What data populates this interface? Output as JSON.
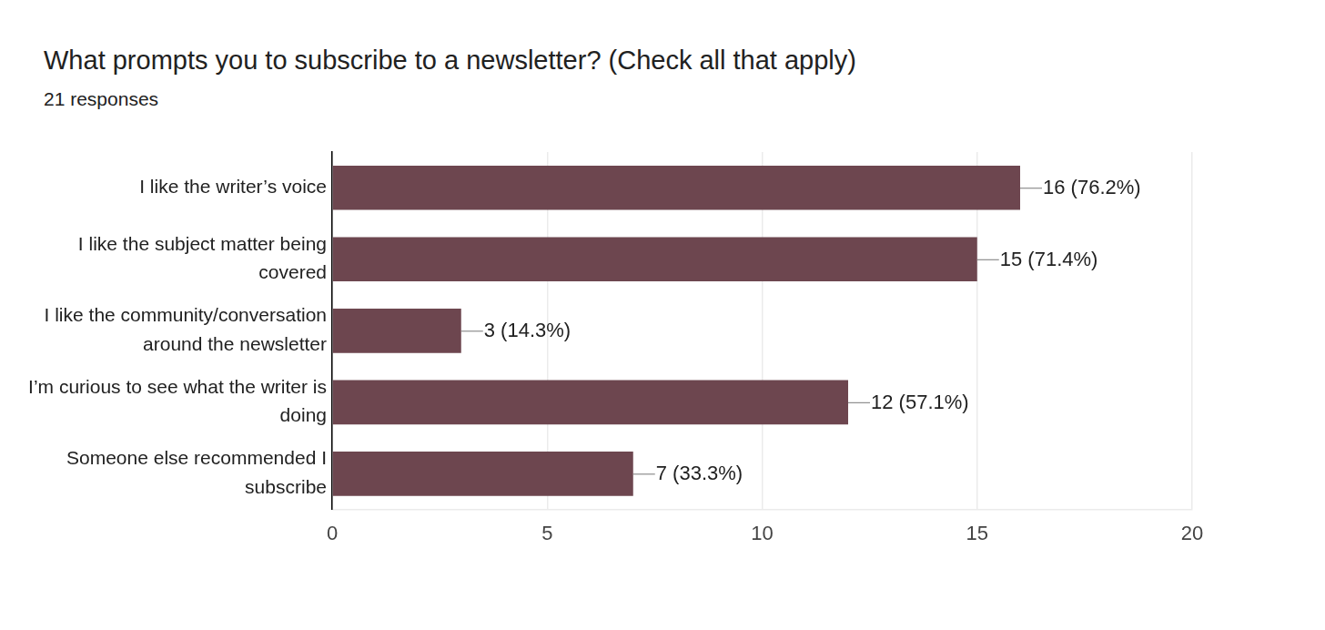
{
  "chart_data": {
    "type": "bar",
    "orientation": "horizontal",
    "title": "What prompts you to subscribe to a newsletter? (Check all that apply)",
    "subtitle": "21 responses",
    "categories": [
      "I like the writer’s voice",
      "I like the subject matter being covered",
      "I like the community/conversation around the newsletter",
      "I’m curious to see what the writer is doing",
      "Someone else recommended I subscribe"
    ],
    "values": [
      16,
      15,
      3,
      12,
      7
    ],
    "value_labels": [
      "16 (76.2%)",
      "15 (71.4%)",
      "3 (14.3%)",
      "12 (57.1%)",
      "7 (33.3%)"
    ],
    "color": "#6d464f",
    "xlim": [
      0,
      20
    ],
    "xticks": [
      0,
      5,
      10,
      15,
      20
    ],
    "grid": true,
    "data_labels": true
  }
}
